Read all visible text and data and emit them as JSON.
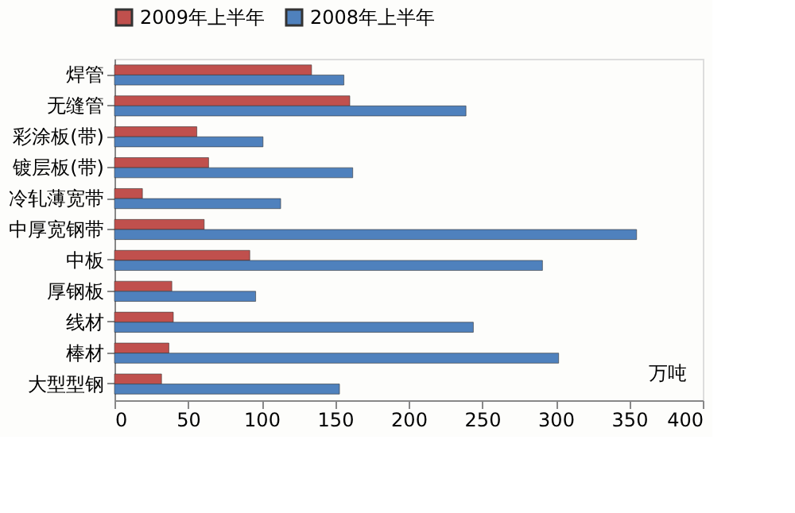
{
  "chart_data": {
    "type": "bar",
    "orientation": "horizontal",
    "categories": [
      "焊管",
      "无缝管",
      "彩涂板(带)",
      "镀层板(带)",
      "冷轧薄宽带",
      "中厚宽钢带",
      "中板",
      "厚钢板",
      "线材",
      "棒材",
      "大型型钢"
    ],
    "series": [
      {
        "name": "2009年上半年",
        "color": "#c0504d",
        "values": [
          134,
          160,
          56,
          64,
          19,
          61,
          92,
          39,
          40,
          37,
          32
        ]
      },
      {
        "name": "2008年上半年",
        "color": "#4f81bd",
        "values": [
          156,
          239,
          101,
          162,
          113,
          355,
          291,
          96,
          244,
          302,
          153
        ]
      }
    ],
    "xlim": [
      0,
      400
    ],
    "xticks": [
      0,
      50,
      100,
      150,
      200,
      250,
      300,
      350,
      400
    ],
    "annotations": [
      "万吨"
    ],
    "legend": "top",
    "grid": false
  }
}
